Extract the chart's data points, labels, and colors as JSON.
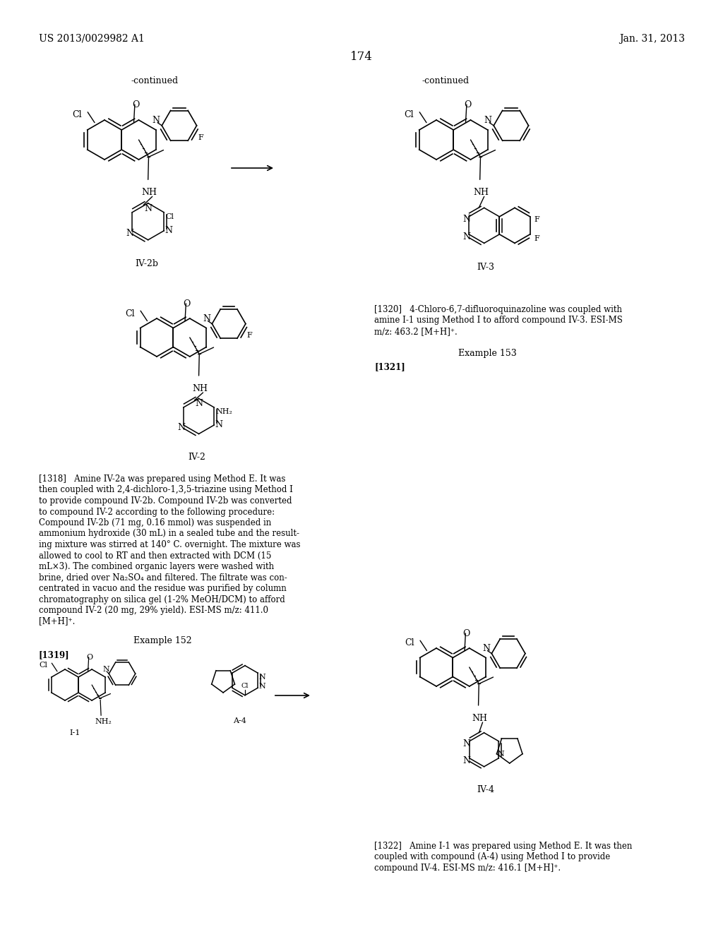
{
  "bg_color": "#ffffff",
  "header_left": "US 2013/0029982 A1",
  "header_right": "Jan. 31, 2013",
  "page_number": "174",
  "para_1318_lines": [
    "[1318]   Amine IV-2a was prepared using Method E. It was",
    "then coupled with 2,4-dichloro-1,3,5-triazine using Method I",
    "to provide compound IV-2b. Compound IV-2b was converted",
    "to compound IV-2 according to the following procedure:",
    "Compound IV-2b (71 mg, 0.16 mmol) was suspended in",
    "ammonium hydroxide (30 mL) in a sealed tube and the result-",
    "ing mixture was stirred at 140° C. overnight. The mixture was",
    "allowed to cool to RT and then extracted with DCM (15",
    "mL×3). The combined organic layers were washed with",
    "brine, dried over Na₂SO₄ and filtered. The filtrate was con-",
    "centrated in vacuo and the residue was purified by column",
    "chromatography on silica gel (1-2% MeOH/DCM) to afford",
    "compound IV-2 (20 mg, 29% yield). ESI-MS m/z: 411.0",
    "[M+H]⁺."
  ],
  "example_152": "Example 152",
  "example_153": "Example 153",
  "para_1319": "[1319]",
  "para_1320_lines": [
    "[1320]   4-Chloro-6,7-difluoroquinazoline was coupled with",
    "amine I-1 using Method I to afford compound IV-3. ESI-MS",
    "m/z: 463.2 [M+H]⁺."
  ],
  "para_1321": "[1321]",
  "para_1322_lines": [
    "[1322]   Amine I-1 was prepared using Method E. It was then",
    "coupled with compound (A-4) using Method I to provide",
    "compound IV-4. ESI-MS m/z: 416.1 [M+H]⁺."
  ]
}
